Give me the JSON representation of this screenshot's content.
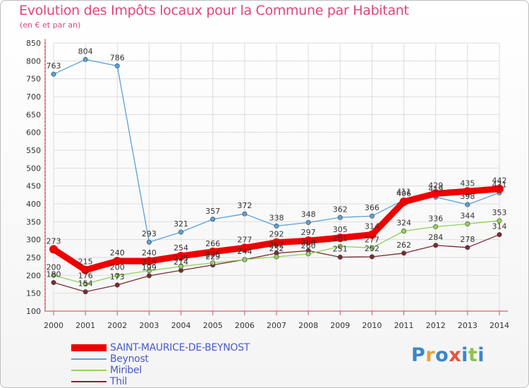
{
  "title": "Evolution des Impôts locaux pour la Commune par Habitant",
  "subtitle": "(en € et par an)",
  "logo": {
    "letters": [
      {
        "ch": "P",
        "color": "#3a86c8"
      },
      {
        "ch": "r",
        "color": "#e8a23a"
      },
      {
        "ch": "o",
        "color": "#3a86c8"
      },
      {
        "ch": "x",
        "color": "#e8543a"
      },
      {
        "ch": "i",
        "color": "#3a86c8"
      },
      {
        "ch": "t",
        "color": "#8cc34a"
      },
      {
        "ch": "i",
        "color": "#3a86c8"
      }
    ]
  },
  "chart_data": {
    "type": "line",
    "title": "Evolution des Impôts locaux pour la Commune par Habitant",
    "subtitle": "(en € et par an)",
    "xlabel": "",
    "ylabel": "",
    "x": [
      "2000",
      "2001",
      "2002",
      "2003",
      "2004",
      "2005",
      "2006",
      "2007",
      "2008",
      "2009",
      "2010",
      "2011",
      "2012",
      "2013",
      "2014"
    ],
    "ylim": [
      100,
      850
    ],
    "yticks": [
      100,
      150,
      200,
      250,
      300,
      350,
      400,
      450,
      500,
      550,
      600,
      650,
      700,
      750,
      800,
      850
    ],
    "grid": true,
    "legend_position": "bottom-left",
    "series": [
      {
        "name": "Thil",
        "color": "#7a2a30",
        "values": [
          180,
          154,
          173,
          199,
          214,
          229,
          244,
          262,
          269,
          251,
          252,
          262,
          284,
          278,
          314
        ]
      },
      {
        "name": "Miribel",
        "color": "#8fd35a",
        "values": [
          200,
          176,
          200,
          213,
          225,
          235,
          244,
          252,
          260,
          281,
          277,
          324,
          336,
          344,
          353
        ]
      },
      {
        "name": "Beynost",
        "color": "#5aa0d8",
        "values": [
          763,
          804,
          786,
          293,
          321,
          357,
          372,
          338,
          348,
          362,
          366,
          411,
          419,
          398,
          431
        ]
      },
      {
        "name": "SAINT-MAURICE-DE-BEYNOST",
        "color": "#ee0000",
        "values": [
          273,
          215,
          240,
          240,
          254,
          266,
          277,
          292,
          297,
          305,
          314,
          406,
          429,
          435,
          442
        ]
      }
    ],
    "legend": [
      "SAINT-MAURICE-DE-BEYNOST",
      "Beynost",
      "Miribel",
      "Thil"
    ]
  }
}
